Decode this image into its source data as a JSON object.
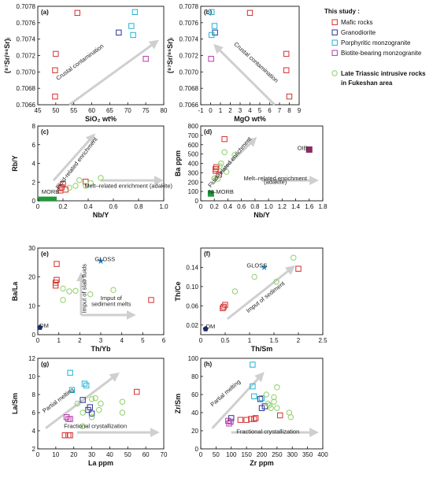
{
  "colors": {
    "mafic": "#d62f2f",
    "granodiorite": "#2a3590",
    "porphyritic": "#1fb4d6",
    "biotite": "#b43aa8",
    "triassic": "#8fcf6a",
    "arrow": "#cfcfcf",
    "morb": "#1e9a3a",
    "oib": "#8a2a63",
    "gloss": "#2a8fd6",
    "dm": "#1b2a6b"
  },
  "legend": {
    "title": "This  study :",
    "items": [
      {
        "key": "mafic",
        "label": "Mafic rocks"
      },
      {
        "key": "granodiorite",
        "label": "Granodiorite"
      },
      {
        "key": "porphyritic",
        "label": "Porphyritic monzogranite"
      },
      {
        "key": "biotite",
        "label": "Biotite-bearing monzogranite"
      }
    ],
    "triassic_line1": "Late Triassic intrusive rocks",
    "triassic_line2": "in Fukeshan area"
  },
  "chart_data": [
    {
      "id": "a",
      "panel_label": "(a)",
      "type": "scatter",
      "xlabel": "SiO₂ wt%",
      "ylabel": "(⁸⁷Sr/⁸⁶Sr)ᵢ",
      "xlim": [
        45,
        80
      ],
      "ylim": [
        0.7066,
        0.7078
      ],
      "xticks": [
        "45",
        "50",
        "55",
        "60",
        "65",
        "70",
        "75",
        "80"
      ],
      "yticks": [
        "0.7066",
        "0.7068",
        "0.7070",
        "0.7072",
        "0.7074",
        "0.7076",
        "0.7078"
      ],
      "annotations": [
        {
          "text": "Crustal contamination",
          "x": 57,
          "y": 0.7071
        }
      ],
      "series": [
        {
          "group": "mafic",
          "points": [
            [
              49.8,
              0.7067
            ],
            [
              49.8,
              0.70702
            ],
            [
              50,
              0.70722
            ],
            [
              56,
              0.70772
            ]
          ]
        },
        {
          "group": "granodiorite",
          "points": [
            [
              67.5,
              0.70748
            ]
          ]
        },
        {
          "group": "porphyritic",
          "points": [
            [
              71,
              0.70756
            ],
            [
              71.5,
              0.70745
            ],
            [
              72,
              0.70773
            ]
          ]
        },
        {
          "group": "biotite",
          "points": [
            [
              75,
              0.70716
            ]
          ]
        }
      ]
    },
    {
      "id": "b",
      "panel_label": "(b)",
      "type": "scatter",
      "xlabel": "MgO wt%",
      "ylabel": "(⁸⁷Sr/⁸⁶Sr)ᵢ",
      "xlim": [
        -1,
        9
      ],
      "ylim": [
        0.7066,
        0.7078
      ],
      "xticks": [
        "-1",
        "0",
        "1",
        "2",
        "3",
        "4",
        "5",
        "6",
        "7",
        "8",
        "9"
      ],
      "yticks": [
        "0.7066",
        "0.7068",
        "0.7070",
        "0.7072",
        "0.7074",
        "0.7076",
        "0.7078"
      ],
      "annotations": [
        {
          "text": "Crustal contamination",
          "x": 4.5,
          "y": 0.7071
        }
      ],
      "series": [
        {
          "group": "mafic",
          "points": [
            [
              4,
              0.70772
            ],
            [
              7.7,
              0.70722
            ],
            [
              7.7,
              0.70702
            ],
            [
              8,
              0.7067
            ]
          ]
        },
        {
          "group": "granodiorite",
          "points": [
            [
              0.45,
              0.70748
            ]
          ]
        },
        {
          "group": "porphyritic",
          "points": [
            [
              0.1,
              0.70773
            ],
            [
              0.1,
              0.70745
            ],
            [
              0.4,
              0.70756
            ]
          ]
        },
        {
          "group": "biotite",
          "points": [
            [
              0.05,
              0.70716
            ]
          ]
        }
      ]
    },
    {
      "id": "c",
      "panel_label": "(c)",
      "type": "scatter",
      "xlabel": "Nb/Y",
      "ylabel": "Rb/Y",
      "xlim": [
        0,
        1.0
      ],
      "ylim": [
        0,
        8
      ],
      "xticks": [
        "0",
        "0.2",
        "0.4",
        "0.6",
        "0.8",
        "1.0"
      ],
      "yticks": [
        "0",
        "2",
        "4",
        "6",
        "8"
      ],
      "annotations": [
        {
          "text": "Fluid-related enrichment",
          "x": 0.32,
          "y": 3.9
        },
        {
          "text": "Melt–related enrichment (adakite)",
          "x": 0.72,
          "y": 1.4
        },
        {
          "text": "MORB",
          "x": 0.1,
          "y": 0.75
        }
      ],
      "fields": [
        {
          "name": "MORB",
          "x": [
            0,
            0.15
          ],
          "y": [
            0,
            0.45
          ]
        }
      ],
      "series": [
        {
          "group": "mafic",
          "points": [
            [
              0.18,
              1.1
            ],
            [
              0.18,
              1.35
            ],
            [
              0.19,
              1.45
            ],
            [
              0.2,
              1.8
            ],
            [
              0.22,
              1.2
            ],
            [
              0.38,
              2.05
            ]
          ]
        },
        {
          "group": "triassic",
          "points": [
            [
              0.3,
              1.6
            ],
            [
              0.33,
              2.2
            ],
            [
              0.42,
              1.9
            ],
            [
              0.5,
              2.45
            ],
            [
              0.38,
              1.6
            ],
            [
              0.25,
              1.4
            ]
          ]
        }
      ]
    },
    {
      "id": "d",
      "panel_label": "(d)",
      "type": "scatter",
      "xlabel": "Nb/Y",
      "ylabel": "Ba ppm",
      "xlim": [
        0,
        1.8
      ],
      "ylim": [
        0,
        800
      ],
      "xticks": [
        "0",
        "0.2",
        "0.4",
        "0.6",
        "0.8",
        "1.0",
        "1.2",
        "1.4",
        "1.6",
        "1.8"
      ],
      "yticks": [
        "0",
        "100",
        "200",
        "300",
        "400",
        "500",
        "600",
        "700",
        "800"
      ],
      "annotations": [
        {
          "text": "Fluid-related enrichment",
          "x": 0.45,
          "y": 400
        },
        {
          "text": "Melt–related enrichment",
          "x": 1.1,
          "y": 220
        },
        {
          "text": "(adakite)",
          "x": 1.1,
          "y": 180
        },
        {
          "text": "N–MORB",
          "x": 0.3,
          "y": 75
        },
        {
          "text": "OIB",
          "x": 1.5,
          "y": 545
        }
      ],
      "series": [
        {
          "group": "mafic",
          "points": [
            [
              0.22,
              320
            ],
            [
              0.22,
              340
            ],
            [
              0.23,
              360
            ],
            [
              0.27,
              280
            ],
            [
              0.35,
              660
            ]
          ]
        },
        {
          "group": "triassic",
          "points": [
            [
              0.2,
              240
            ],
            [
              0.25,
              235
            ],
            [
              0.28,
              370
            ],
            [
              0.3,
              400
            ],
            [
              0.35,
              520
            ],
            [
              0.5,
              490
            ],
            [
              0.38,
              310
            ]
          ]
        },
        {
          "group": "morb_marker",
          "points": [
            [
              0.15,
              78
            ]
          ]
        },
        {
          "group": "oib_marker",
          "points": [
            [
              1.6,
              548
            ]
          ]
        }
      ]
    },
    {
      "id": "e",
      "panel_label": "(e)",
      "type": "scatter",
      "xlabel": "Th/Yb",
      "ylabel": "Ba/La",
      "xlim": [
        0,
        6
      ],
      "ylim": [
        0,
        30
      ],
      "xticks": [
        "0",
        "1",
        "2",
        "3",
        "4",
        "5",
        "6"
      ],
      "yticks": [
        "0",
        "10",
        "20",
        "30"
      ],
      "annotations": [
        {
          "text": "GLOSS",
          "x": 3.2,
          "y": 25.5
        },
        {
          "text": "Imput of slab fluids",
          "x": 2.3,
          "y": 16
        },
        {
          "text": "Imput of",
          "x": 3.5,
          "y": 12
        },
        {
          "text": "sediment melts",
          "x": 3.5,
          "y": 10
        },
        {
          "text": "DM",
          "x": 0.3,
          "y": 2.5
        }
      ],
      "series": [
        {
          "group": "mafic",
          "points": [
            [
              0.9,
              24.5
            ],
            [
              0.9,
              19
            ],
            [
              0.85,
              18
            ],
            [
              0.85,
              17
            ],
            [
              5.4,
              12
            ]
          ]
        },
        {
          "group": "triassic",
          "points": [
            [
              1.2,
              12
            ],
            [
              1.2,
              16
            ],
            [
              1.5,
              15
            ],
            [
              1.8,
              15.2
            ],
            [
              2.5,
              14
            ],
            [
              3.6,
              15.5
            ]
          ]
        },
        {
          "group": "gloss_marker",
          "points": [
            [
              3,
              25.5
            ]
          ]
        },
        {
          "group": "dm_marker",
          "points": [
            [
              0.1,
              2.5
            ]
          ]
        }
      ]
    },
    {
      "id": "f",
      "panel_label": "(f)",
      "type": "scatter",
      "xlabel": "Th/Sm",
      "ylabel": "Th/Ce",
      "xlim": [
        0,
        2.5
      ],
      "ylim": [
        0,
        0.18
      ],
      "xticks": [
        "0",
        "0.5",
        "1",
        "1.5",
        "2",
        "2.5"
      ],
      "yticks": [
        "0.02",
        "0.06",
        "0.10",
        "0.14"
      ],
      "annotations": [
        {
          "text": "GLOSS",
          "x": 1.15,
          "y": 0.14
        },
        {
          "text": "Imput of sediment",
          "x": 1.35,
          "y": 0.075
        },
        {
          "text": "DM",
          "x": 0.2,
          "y": 0.013
        }
      ],
      "series": [
        {
          "group": "mafic",
          "points": [
            [
              0.45,
              0.055
            ],
            [
              0.47,
              0.058
            ],
            [
              0.5,
              0.062
            ],
            [
              2,
              0.137
            ]
          ]
        },
        {
          "group": "triassic",
          "points": [
            [
              0.7,
              0.09
            ],
            [
              1.1,
              0.12
            ],
            [
              1.55,
              0.11
            ],
            [
              1.9,
              0.16
            ]
          ]
        },
        {
          "group": "gloss_marker",
          "points": [
            [
              1.3,
              0.14
            ]
          ]
        },
        {
          "group": "dm_marker",
          "points": [
            [
              0.1,
              0.012
            ]
          ]
        }
      ]
    },
    {
      "id": "g",
      "panel_label": "(g)",
      "type": "scatter",
      "xlabel": "La ppm",
      "ylabel": "La/Sm",
      "xlim": [
        0,
        70
      ],
      "ylim": [
        2,
        12
      ],
      "xticks": [
        "0",
        "10",
        "20",
        "30",
        "40",
        "50",
        "60",
        "70"
      ],
      "yticks": [
        "2",
        "4",
        "6",
        "8",
        "10",
        "12"
      ],
      "annotations": [
        {
          "text": "Partial melting",
          "x": 12,
          "y": 7.2
        },
        {
          "text": "Fractional crystallization",
          "x": 32,
          "y": 4.3
        }
      ],
      "series": [
        {
          "group": "mafic",
          "points": [
            [
              15,
              3.5
            ],
            [
              17,
              3.5
            ],
            [
              18,
              3.5
            ],
            [
              55,
              8.3
            ]
          ]
        },
        {
          "group": "granodiorite",
          "points": [
            [
              25,
              7.4
            ],
            [
              28,
              6.3
            ],
            [
              29,
              6.6
            ],
            [
              30,
              5.9
            ]
          ]
        },
        {
          "group": "porphyritic",
          "points": [
            [
              18,
              10.4
            ],
            [
              19,
              8.5
            ],
            [
              26,
              9.2
            ],
            [
              27,
              9.0
            ]
          ]
        },
        {
          "group": "biotite",
          "points": [
            [
              16,
              5.5
            ],
            [
              17,
              5.3
            ],
            [
              18,
              5.3
            ]
          ]
        },
        {
          "group": "triassic",
          "points": [
            [
              22,
              7.0
            ],
            [
              25,
              6.0
            ],
            [
              30,
              7.5
            ],
            [
              32,
              7.6
            ],
            [
              35,
              7.0
            ],
            [
              30,
              5.5
            ],
            [
              47,
              7.2
            ],
            [
              47,
              6.0
            ],
            [
              25,
              4.5
            ],
            [
              34,
              6.3
            ]
          ]
        }
      ]
    },
    {
      "id": "h",
      "panel_label": "(h)",
      "type": "scatter",
      "xlabel": "Zr ppm",
      "ylabel": "Zr/Sm",
      "xlim": [
        0,
        400
      ],
      "ylim": [
        0,
        100
      ],
      "xticks": [
        "0",
        "50",
        "100",
        "150",
        "200",
        "250",
        "300",
        "350",
        "400"
      ],
      "yticks": [
        "0",
        "20",
        "40",
        "60",
        "80",
        "100"
      ],
      "annotations": [
        {
          "text": "Partial melting",
          "x": 85,
          "y": 60
        },
        {
          "text": "Fractional crystallization",
          "x": 220,
          "y": 17
        }
      ],
      "series": [
        {
          "group": "mafic",
          "points": [
            [
              130,
              32
            ],
            [
              150,
              32
            ],
            [
              165,
              33
            ],
            [
              175,
              33
            ],
            [
              180,
              34
            ],
            [
              260,
              37
            ]
          ]
        },
        {
          "group": "granodiorite",
          "points": [
            [
              100,
              34
            ],
            [
              195,
              55
            ],
            [
              200,
              45
            ],
            [
              210,
              47
            ]
          ]
        },
        {
          "group": "porphyritic",
          "points": [
            [
              170,
              93
            ],
            [
              170,
              69
            ],
            [
              175,
              58
            ],
            [
              200,
              56
            ]
          ]
        },
        {
          "group": "biotite",
          "points": [
            [
              90,
              31
            ],
            [
              93,
              28
            ],
            [
              98,
              30
            ]
          ]
        },
        {
          "group": "triassic",
          "points": [
            [
              215,
              60
            ],
            [
              220,
              50
            ],
            [
              230,
              45
            ],
            [
              240,
              52
            ],
            [
              250,
              68
            ],
            [
              250,
              45
            ],
            [
              290,
              40
            ],
            [
              295,
              35
            ],
            [
              240,
              57
            ],
            [
              225,
              48
            ]
          ]
        }
      ]
    }
  ]
}
